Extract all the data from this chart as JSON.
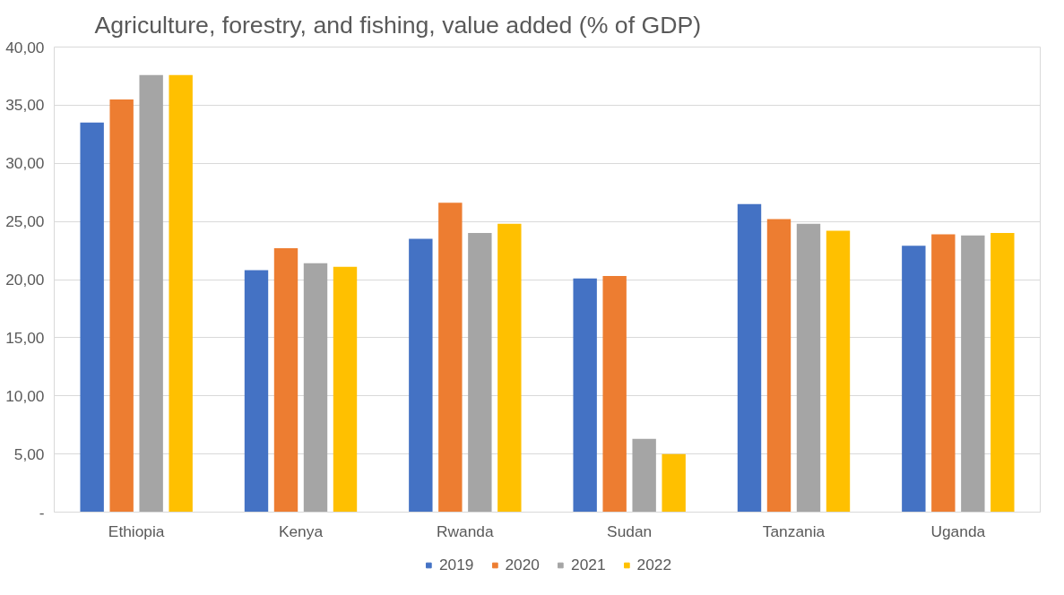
{
  "chart_data": {
    "type": "bar",
    "title": "Agriculture, forestry, and fishing, value added (% of GDP)",
    "categories": [
      "Ethiopia",
      "Kenya",
      "Rwanda",
      "Sudan",
      "Tanzania",
      "Uganda"
    ],
    "series": [
      {
        "name": "2019",
        "color": "#4472c4",
        "values": [
          33.5,
          20.8,
          23.5,
          20.1,
          26.5,
          22.9
        ]
      },
      {
        "name": "2020",
        "color": "#ed7d31",
        "values": [
          35.5,
          22.7,
          26.6,
          20.3,
          25.2,
          23.9
        ]
      },
      {
        "name": "2021",
        "color": "#a5a5a5",
        "values": [
          37.6,
          21.4,
          24.0,
          6.3,
          24.8,
          23.8
        ]
      },
      {
        "name": "2022",
        "color": "#ffc000",
        "values": [
          37.6,
          21.1,
          24.8,
          5.0,
          24.2,
          24.0
        ]
      }
    ],
    "ylim": [
      0,
      40
    ],
    "yticks": [
      {
        "value": 0,
        "label": "-"
      },
      {
        "value": 5,
        "label": "5,00"
      },
      {
        "value": 10,
        "label": "10,00"
      },
      {
        "value": 15,
        "label": "15,00"
      },
      {
        "value": 20,
        "label": "20,00"
      },
      {
        "value": 25,
        "label": "25,00"
      },
      {
        "value": 30,
        "label": "30,00"
      },
      {
        "value": 35,
        "label": "35,00"
      },
      {
        "value": 40,
        "label": "40,00"
      }
    ],
    "grid": "y",
    "legend": "bottom"
  }
}
